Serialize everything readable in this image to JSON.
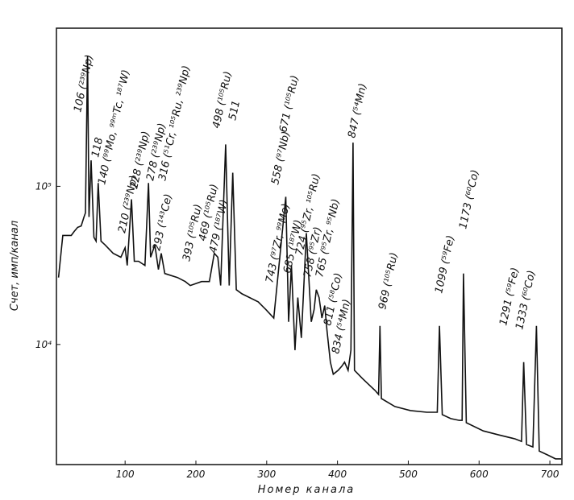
{
  "chart_data": {
    "type": "line",
    "x_label": "Номер канала",
    "y_label": "Счет, имп/канал",
    "log_y": true,
    "grid": false,
    "color": "#111111",
    "xlim": [
      3,
      717
    ],
    "ylim": [
      1740,
      1000000
    ],
    "xticks": [
      100,
      200,
      300,
      400,
      500,
      600,
      700
    ],
    "yticks": [
      {
        "value": 10000,
        "label": "10⁴"
      },
      {
        "value": 100000,
        "label": "10⁵"
      }
    ],
    "x": [
      6,
      12,
      24,
      28,
      33,
      38,
      42,
      44,
      47,
      49,
      52,
      56,
      59,
      62,
      66,
      72,
      83,
      94,
      100,
      103,
      109,
      113,
      119,
      128,
      133,
      136,
      142,
      147,
      151,
      156,
      174,
      185,
      192,
      208,
      219,
      226,
      231,
      235,
      242,
      247,
      252,
      257,
      265,
      288,
      299,
      310,
      327,
      331,
      335,
      340,
      344,
      349,
      356,
      363,
      367,
      370,
      374,
      378,
      382,
      385,
      390,
      394,
      401,
      406,
      410,
      415,
      419,
      422,
      424,
      435,
      447,
      453,
      458,
      460,
      462,
      481,
      503,
      526,
      541,
      544,
      548,
      560,
      572,
      576,
      578,
      582,
      606,
      628,
      651,
      660,
      663,
      667,
      676,
      681,
      685,
      697,
      708,
      716
    ],
    "values": [
      26500,
      48900,
      48900,
      51800,
      55000,
      56200,
      64000,
      67900,
      671000,
      64000,
      146000,
      47700,
      45000,
      105000,
      45000,
      42500,
      37700,
      35600,
      40900,
      31600,
      82800,
      33600,
      33600,
      31600,
      105000,
      35600,
      42500,
      29800,
      37700,
      28100,
      26500,
      25000,
      23600,
      25000,
      25000,
      37700,
      35600,
      23600,
      184000,
      23600,
      122000,
      22200,
      20900,
      18600,
      16600,
      14700,
      85900,
      13900,
      31600,
      9210,
      19800,
      11000,
      50600,
      13900,
      16600,
      22200,
      19800,
      14700,
      17600,
      12400,
      7730,
      6480,
      6870,
      7280,
      7730,
      6870,
      9210,
      189000,
      6870,
      6110,
      5430,
      5120,
      4830,
      13100,
      4550,
      4050,
      3820,
      3730,
      3730,
      13100,
      3600,
      3400,
      3310,
      3310,
      28100,
      3200,
      2840,
      2680,
      2530,
      2440,
      7730,
      2330,
      2250,
      13100,
      2120,
      2000,
      1890,
      1890
    ],
    "annotations": [
      "106 (²³⁹Np)",
      "118",
      "140 (⁹⁹Mo, ⁹⁹ᵐTc, ¹⁸⁷W)",
      "210 (²³⁹Np)",
      "228 (²³⁹Np)",
      "278 (²³⁹Np)",
      "293 (¹⁴³Ce)",
      "316 (⁵¹Cr, ¹⁰⁵Ru, ²³⁹Np)",
      "393 (¹⁰⁵Ru)",
      "469 (¹⁰⁵Ru)",
      "479 (¹⁸⁷W)",
      "498 (¹⁰⁵Ru)",
      "511",
      "558 (⁹⁷Nb)",
      "671 (¹⁰⁵Ru)",
      "743 (⁹⁷Zr, ⁹⁹Mo)",
      "685 (¹⁸⁷W)",
      "724 (⁹⁵Zr, ¹⁰⁵Ru)",
      "758 (⁹⁵Zr)",
      "765 (⁹⁵Zr, ⁹⁵Nb)",
      "811 (⁵⁸Co)",
      "834 (⁵⁴Mn)",
      "847 (⁵⁴Mn)",
      "969 (¹⁰⁵Ru)",
      "1099 (⁵⁹Fe)",
      "1173 (⁶⁰Co)",
      "1291 (⁵⁹Fe)",
      "1333 (⁶⁰Co)"
    ]
  }
}
